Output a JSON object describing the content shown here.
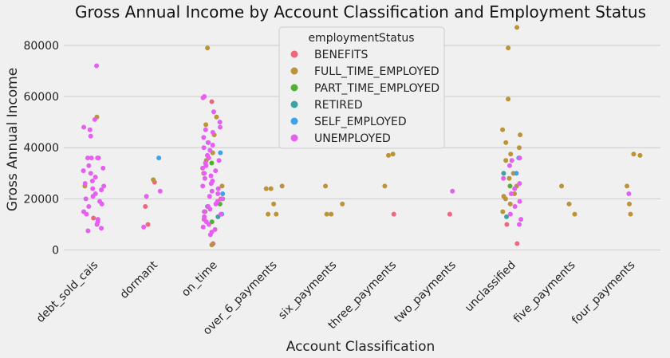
{
  "chart_data": {
    "type": "scatter",
    "subtype": "stripplot",
    "title": "Gross Annual Income by Account Classification and Employment Status",
    "xlabel": "Account Classification",
    "ylabel": "Gross Annual Income",
    "ylim": [
      -2000,
      89000
    ],
    "yticks": [
      0,
      20000,
      40000,
      60000,
      80000
    ],
    "grid": true,
    "legend_position": "top-center",
    "legend_title": "employmentStatus",
    "categories": [
      "debt_sold_cais",
      "dormant",
      "on_time",
      "over_6_payments",
      "six_payments",
      "three_payments",
      "two_payments",
      "unclassified",
      "five_payments",
      "four_payments"
    ],
    "series": [
      {
        "name": "BENEFITS",
        "color": "#f0677b",
        "points": [
          [
            "debt_sold_cais",
            12500
          ],
          [
            "dormant",
            26500
          ],
          [
            "dormant",
            17000
          ],
          [
            "dormant",
            10000
          ],
          [
            "on_time",
            58000
          ],
          [
            "on_time",
            2500
          ],
          [
            "on_time",
            12000
          ],
          [
            "on_time",
            20000
          ],
          [
            "three_payments",
            14000
          ],
          [
            "two_payments",
            14000
          ],
          [
            "unclassified",
            10000
          ],
          [
            "unclassified",
            2500
          ]
        ]
      },
      {
        "name": "FULL_TIME_EMPLOYED",
        "color": "#bb9339",
        "points": [
          [
            "debt_sold_cais",
            52000
          ],
          [
            "debt_sold_cais",
            25000
          ],
          [
            "dormant",
            27500
          ],
          [
            "on_time",
            79000
          ],
          [
            "on_time",
            52000
          ],
          [
            "on_time",
            49000
          ],
          [
            "on_time",
            45000
          ],
          [
            "on_time",
            38000
          ],
          [
            "on_time",
            35000
          ],
          [
            "on_time",
            30000
          ],
          [
            "on_time",
            25000
          ],
          [
            "on_time",
            20000
          ],
          [
            "on_time",
            15000
          ],
          [
            "on_time",
            2000
          ],
          [
            "over_6_payments",
            25000
          ],
          [
            "over_6_payments",
            24000
          ],
          [
            "over_6_payments",
            24000
          ],
          [
            "over_6_payments",
            18000
          ],
          [
            "over_6_payments",
            14000
          ],
          [
            "over_6_payments",
            14000
          ],
          [
            "six_payments",
            25000
          ],
          [
            "six_payments",
            18000
          ],
          [
            "six_payments",
            14000
          ],
          [
            "six_payments",
            14000
          ],
          [
            "three_payments",
            37500
          ],
          [
            "three_payments",
            37000
          ],
          [
            "three_payments",
            25000
          ],
          [
            "unclassified",
            87000
          ],
          [
            "unclassified",
            79000
          ],
          [
            "unclassified",
            59000
          ],
          [
            "unclassified",
            47000
          ],
          [
            "unclassified",
            45000
          ],
          [
            "unclassified",
            42000
          ],
          [
            "unclassified",
            40000
          ],
          [
            "unclassified",
            37500
          ],
          [
            "unclassified",
            35000
          ],
          [
            "unclassified",
            30000
          ],
          [
            "unclassified",
            28000
          ],
          [
            "unclassified",
            25000
          ],
          [
            "unclassified",
            22000
          ],
          [
            "unclassified",
            21000
          ],
          [
            "unclassified",
            20000
          ],
          [
            "unclassified",
            18000
          ],
          [
            "unclassified",
            15000
          ],
          [
            "five_payments",
            25000
          ],
          [
            "five_payments",
            18000
          ],
          [
            "five_payments",
            14000
          ],
          [
            "four_payments",
            37500
          ],
          [
            "four_payments",
            37000
          ],
          [
            "four_payments",
            25000
          ],
          [
            "four_payments",
            18000
          ],
          [
            "four_payments",
            14000
          ]
        ]
      },
      {
        "name": "PART_TIME_EMPLOYED",
        "color": "#50b131",
        "points": [
          [
            "on_time",
            34000
          ],
          [
            "on_time",
            18000
          ],
          [
            "on_time",
            11000
          ],
          [
            "unclassified",
            25000
          ]
        ]
      },
      {
        "name": "RETIRED",
        "color": "#3ba3a4",
        "points": [
          [
            "on_time",
            42000
          ],
          [
            "on_time",
            17000
          ],
          [
            "on_time",
            13000
          ],
          [
            "unclassified",
            30000
          ],
          [
            "unclassified",
            13000
          ]
        ]
      },
      {
        "name": "SELF_EMPLOYED",
        "color": "#3ba3ec",
        "points": [
          [
            "dormant",
            36000
          ],
          [
            "on_time",
            38000
          ],
          [
            "on_time",
            22000
          ],
          [
            "on_time",
            14000
          ],
          [
            "unclassified",
            36000
          ],
          [
            "unclassified",
            30000
          ]
        ]
      },
      {
        "name": "UNEMPLOYED",
        "color": "#e55ff0",
        "points": [
          [
            "debt_sold_cais",
            72000
          ],
          [
            "debt_sold_cais",
            51000
          ],
          [
            "debt_sold_cais",
            48000
          ],
          [
            "debt_sold_cais",
            47000
          ],
          [
            "debt_sold_cais",
            44500
          ],
          [
            "debt_sold_cais",
            36000
          ],
          [
            "debt_sold_cais",
            36000
          ],
          [
            "debt_sold_cais",
            36000
          ],
          [
            "debt_sold_cais",
            36000
          ],
          [
            "debt_sold_cais",
            33000
          ],
          [
            "debt_sold_cais",
            32000
          ],
          [
            "debt_sold_cais",
            31000
          ],
          [
            "debt_sold_cais",
            30000
          ],
          [
            "debt_sold_cais",
            28500
          ],
          [
            "debt_sold_cais",
            27000
          ],
          [
            "debt_sold_cais",
            26000
          ],
          [
            "debt_sold_cais",
            25000
          ],
          [
            "debt_sold_cais",
            24000
          ],
          [
            "debt_sold_cais",
            23500
          ],
          [
            "debt_sold_cais",
            22000
          ],
          [
            "debt_sold_cais",
            21000
          ],
          [
            "debt_sold_cais",
            20000
          ],
          [
            "debt_sold_cais",
            19000
          ],
          [
            "debt_sold_cais",
            18000
          ],
          [
            "debt_sold_cais",
            17000
          ],
          [
            "debt_sold_cais",
            15000
          ],
          [
            "debt_sold_cais",
            14000
          ],
          [
            "debt_sold_cais",
            12000
          ],
          [
            "debt_sold_cais",
            11000
          ],
          [
            "debt_sold_cais",
            10000
          ],
          [
            "debt_sold_cais",
            8500
          ],
          [
            "debt_sold_cais",
            7500
          ],
          [
            "dormant",
            23000
          ],
          [
            "dormant",
            21000
          ],
          [
            "dormant",
            9000
          ],
          [
            "on_time",
            60000
          ],
          [
            "on_time",
            59500
          ],
          [
            "on_time",
            54000
          ],
          [
            "on_time",
            50000
          ],
          [
            "on_time",
            48000
          ],
          [
            "on_time",
            47000
          ],
          [
            "on_time",
            46000
          ],
          [
            "on_time",
            44000
          ],
          [
            "on_time",
            42000
          ],
          [
            "on_time",
            41000
          ],
          [
            "on_time",
            40000
          ],
          [
            "on_time",
            39000
          ],
          [
            "on_time",
            37000
          ],
          [
            "on_time",
            36000
          ],
          [
            "on_time",
            35000
          ],
          [
            "on_time",
            34000
          ],
          [
            "on_time",
            33000
          ],
          [
            "on_time",
            32000
          ],
          [
            "on_time",
            31000
          ],
          [
            "on_time",
            30000
          ],
          [
            "on_time",
            29000
          ],
          [
            "on_time",
            28000
          ],
          [
            "on_time",
            27000
          ],
          [
            "on_time",
            26000
          ],
          [
            "on_time",
            25000
          ],
          [
            "on_time",
            24000
          ],
          [
            "on_time",
            23000
          ],
          [
            "on_time",
            22000
          ],
          [
            "on_time",
            21000
          ],
          [
            "on_time",
            20000
          ],
          [
            "on_time",
            19000
          ],
          [
            "on_time",
            18000
          ],
          [
            "on_time",
            17000
          ],
          [
            "on_time",
            16000
          ],
          [
            "on_time",
            15000
          ],
          [
            "on_time",
            14000
          ],
          [
            "on_time",
            13000
          ],
          [
            "on_time",
            12000
          ],
          [
            "on_time",
            11000
          ],
          [
            "on_time",
            10000
          ],
          [
            "on_time",
            9000
          ],
          [
            "on_time",
            8000
          ],
          [
            "on_time",
            7000
          ],
          [
            "on_time",
            6000
          ],
          [
            "two_payments",
            23000
          ],
          [
            "unclassified",
            36000
          ],
          [
            "unclassified",
            35000
          ],
          [
            "unclassified",
            33000
          ],
          [
            "unclassified",
            28000
          ],
          [
            "unclassified",
            26000
          ],
          [
            "unclassified",
            24000
          ],
          [
            "unclassified",
            22000
          ],
          [
            "unclassified",
            19000
          ],
          [
            "unclassified",
            17000
          ],
          [
            "unclassified",
            14000
          ],
          [
            "unclassified",
            12000
          ],
          [
            "unclassified",
            10000
          ],
          [
            "four_payments",
            22000
          ]
        ]
      }
    ]
  }
}
